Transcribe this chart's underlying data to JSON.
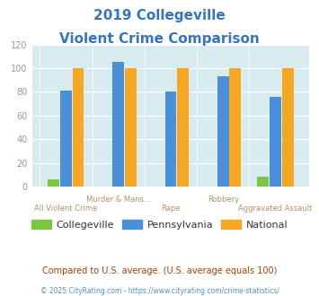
{
  "title_line1": "2019 Collegeville",
  "title_line2": "Violent Crime Comparison",
  "title_color": "#3575c0",
  "categories": [
    "All Violent Crime",
    "Murder & Mans...",
    "Rape",
    "Robbery",
    "Aggravated Assault"
  ],
  "collegeville": [
    6,
    0,
    0,
    0,
    8
  ],
  "pennsylvania": [
    81,
    105,
    80,
    93,
    76
  ],
  "national": [
    100,
    100,
    100,
    100,
    100
  ],
  "collegeville_color": "#7dc642",
  "pennsylvania_color": "#4a90d9",
  "national_color": "#f5a623",
  "ylim": [
    0,
    120
  ],
  "yticks": [
    0,
    20,
    40,
    60,
    80,
    100,
    120
  ],
  "background_color": "#d8ecf0",
  "legend_labels": [
    "Collegeville",
    "Pennsylvania",
    "National"
  ],
  "footnote1": "Compared to U.S. average. (U.S. average equals 100)",
  "footnote2": "© 2025 CityRating.com - https://www.cityrating.com/crime-statistics/",
  "footnote1_color": "#b04000",
  "footnote2_color": "#4a90d9",
  "top_labels": [
    "",
    "Murder & Mans...",
    "",
    "Robbery",
    ""
  ],
  "bottom_labels": [
    "All Violent Crime",
    "",
    "Rape",
    "",
    "Aggravated Assault"
  ],
  "label_color": "#b09070",
  "ytick_color": "#999999",
  "bar_width": 0.22,
  "bar_gap": 0.015
}
